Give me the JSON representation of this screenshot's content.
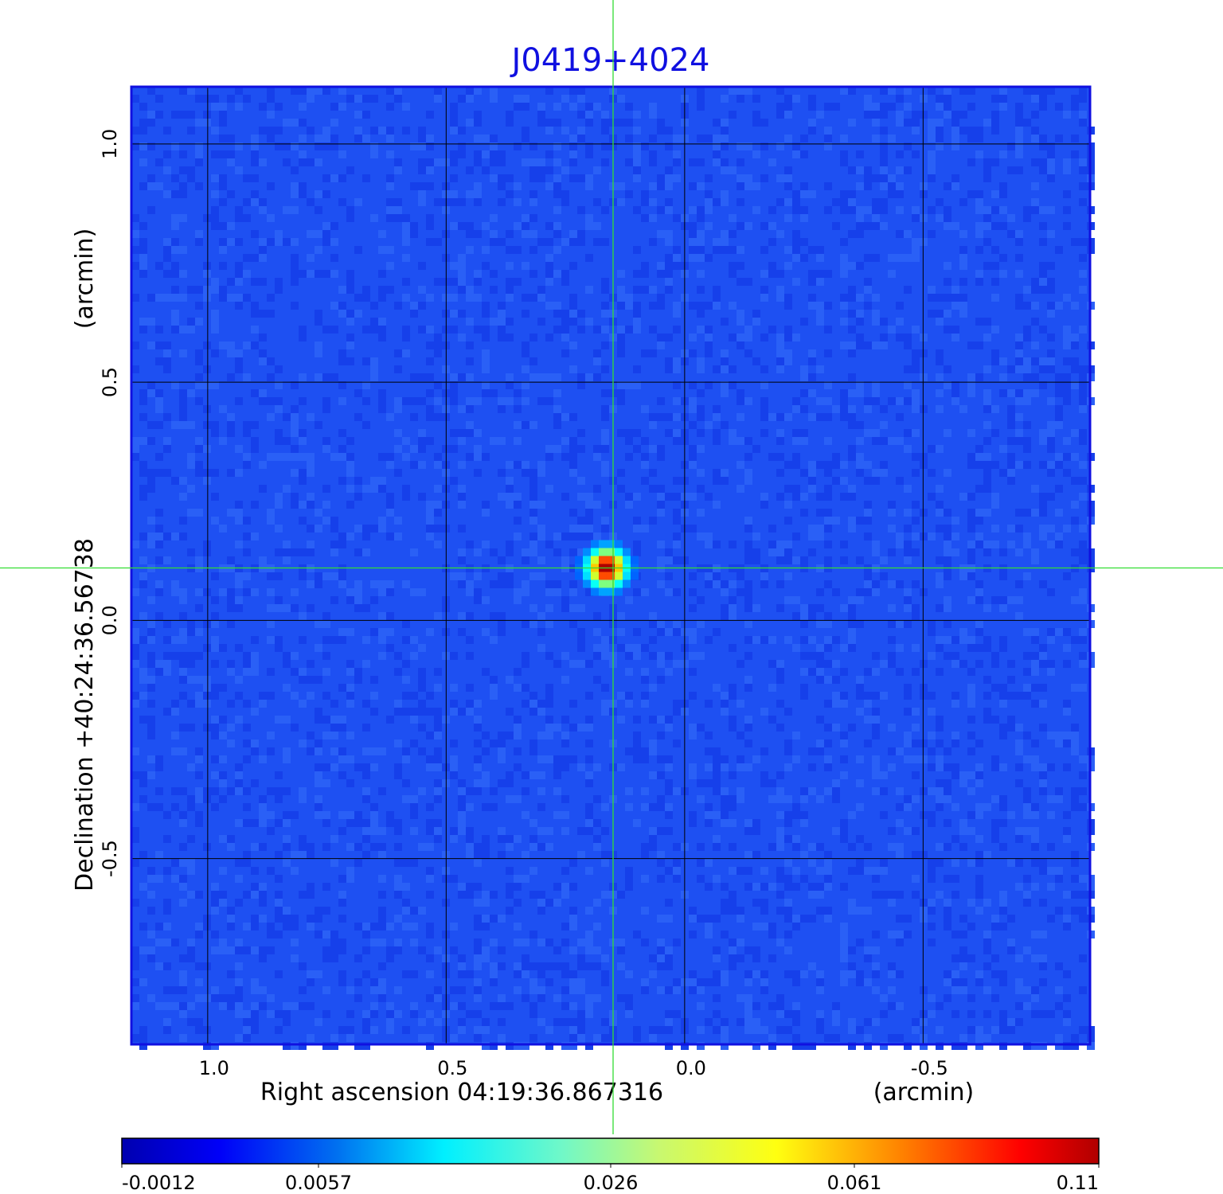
{
  "chart_data": {
    "type": "heatmap",
    "title": "J0419+4024",
    "xlabel": "Right ascension  04:19:36.867316",
    "xunit": "(arcmin)",
    "ylabel": "Declination  +40:24:36.56738",
    "yunit": "(arcmin)",
    "x_ticks": [
      "1.0",
      "0.5",
      "0.0",
      "-0.5"
    ],
    "x_tick_values": [
      1.0,
      0.5,
      0.0,
      -0.5
    ],
    "y_ticks": [
      "1.0",
      "0.5",
      "0.0",
      "-0.5"
    ],
    "y_tick_values": [
      1.0,
      0.5,
      0.0,
      -0.5
    ],
    "xlim": [
      1.16,
      -0.85
    ],
    "ylim": [
      -0.89,
      1.12
    ],
    "grid": true,
    "crosshair": {
      "x": 0.15,
      "y": 0.11
    },
    "source_peak": {
      "x": 0.15,
      "y": 0.11,
      "value": 0.11
    },
    "background_value": 0.002,
    "colormap": "jet",
    "colorbar": {
      "placement": "bottom",
      "ticks": [
        "-0.0012",
        "0.0057",
        "0.026",
        "0.061",
        "0.11"
      ],
      "range": [
        -0.0012,
        0.11
      ]
    },
    "colors": {
      "title": "#1010e0",
      "crosshair": "#33dd33",
      "grid": "#000000",
      "frame": "#1010e0",
      "background": "#1e50f2"
    }
  }
}
